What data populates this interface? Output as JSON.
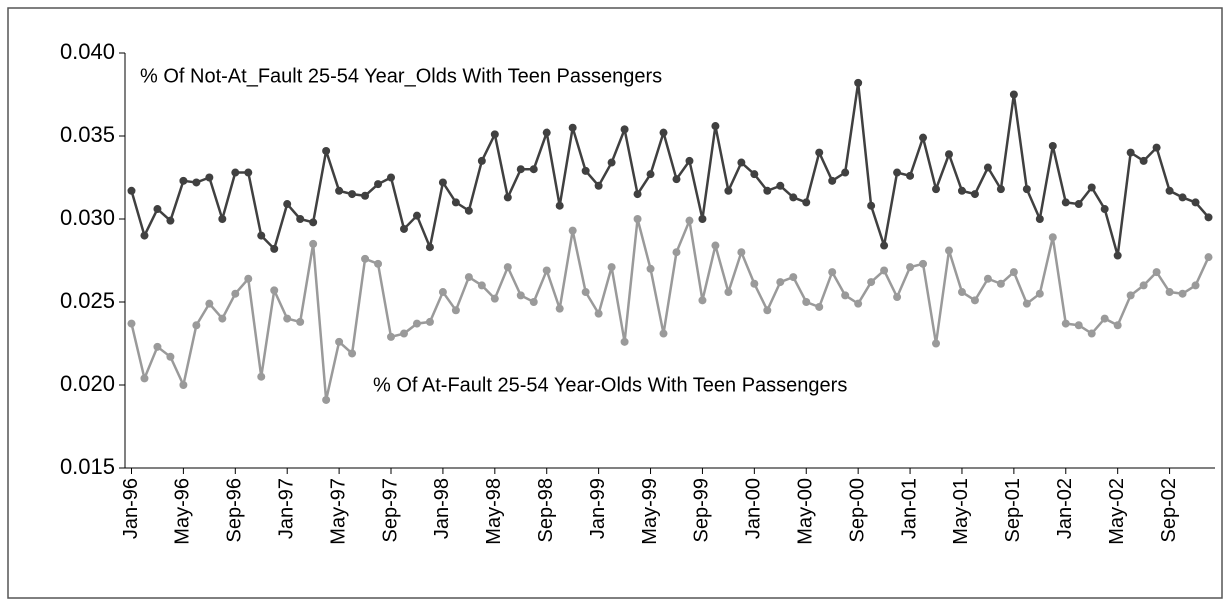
{
  "chart_data": {
    "type": "line",
    "categories": [
      "Jan-96",
      null,
      null,
      null,
      "May-96",
      null,
      null,
      null,
      "Sep-96",
      null,
      null,
      null,
      "Jan-97",
      null,
      null,
      null,
      "May-97",
      null,
      null,
      null,
      "Sep-97",
      null,
      null,
      null,
      "Jan-98",
      null,
      null,
      null,
      "May-98",
      null,
      null,
      null,
      "Sep-98",
      null,
      null,
      null,
      "Jan-99",
      null,
      null,
      null,
      "May-99",
      null,
      null,
      null,
      "Sep-99",
      null,
      null,
      null,
      "Jan-00",
      null,
      null,
      null,
      "May-00",
      null,
      null,
      null,
      "Sep-00",
      null,
      null,
      null,
      "Jan-01",
      null,
      null,
      null,
      "May-01",
      null,
      null,
      null,
      "Sep-01",
      null,
      null,
      null,
      "Jan-02",
      null,
      null,
      null,
      "May-02",
      null,
      null,
      null,
      "Sep-02",
      null,
      null,
      null
    ],
    "series": [
      {
        "name": "% Of Not-At_Fault 25-54 Year_Olds With Teen Passengers",
        "color": "#404040",
        "values": [
          0.0317,
          0.029,
          0.0306,
          0.0299,
          0.0323,
          0.0322,
          0.0325,
          0.03,
          0.0328,
          0.0328,
          0.029,
          0.0282,
          0.0309,
          0.03,
          0.0298,
          0.0341,
          0.0317,
          0.0315,
          0.0314,
          0.0321,
          0.0325,
          0.0294,
          0.0302,
          0.0283,
          0.0322,
          0.031,
          0.0305,
          0.0335,
          0.0351,
          0.0313,
          0.033,
          0.033,
          0.0352,
          0.0308,
          0.0355,
          0.0329,
          0.032,
          0.0334,
          0.0354,
          0.0315,
          0.0327,
          0.0352,
          0.0324,
          0.0335,
          0.03,
          0.0356,
          0.0317,
          0.0334,
          0.0327,
          0.0317,
          0.032,
          0.0313,
          0.031,
          0.034,
          0.0323,
          0.0328,
          0.0382,
          0.0308,
          0.0284,
          0.0328,
          0.0326,
          0.0349,
          0.0318,
          0.0339,
          0.0317,
          0.0315,
          0.0331,
          0.0318,
          0.0375,
          0.0318,
          0.03,
          0.0344,
          0.031,
          0.0309,
          0.0319,
          0.0306,
          0.0278,
          0.034,
          0.0335,
          0.0343,
          0.0317,
          0.0313,
          0.031,
          0.0301
        ]
      },
      {
        "name": "% Of At-Fault 25-54 Year-Olds With Teen Passengers",
        "color": "#9a9a9a",
        "values": [
          0.0237,
          0.0204,
          0.0223,
          0.0217,
          0.02,
          0.0236,
          0.0249,
          0.024,
          0.0255,
          0.0264,
          0.0205,
          0.0257,
          0.024,
          0.0238,
          0.0285,
          0.0191,
          0.0226,
          0.0219,
          0.0276,
          0.0273,
          0.0229,
          0.0231,
          0.0237,
          0.0238,
          0.0256,
          0.0245,
          0.0265,
          0.026,
          0.0252,
          0.0271,
          0.0254,
          0.025,
          0.0269,
          0.0246,
          0.0293,
          0.0256,
          0.0243,
          0.0271,
          0.0226,
          0.03,
          0.027,
          0.0231,
          0.028,
          0.0299,
          0.0251,
          0.0284,
          0.0256,
          0.028,
          0.0261,
          0.0245,
          0.0262,
          0.0265,
          0.025,
          0.0247,
          0.0268,
          0.0254,
          0.0249,
          0.0262,
          0.0269,
          0.0253,
          0.0271,
          0.0273,
          0.0225,
          0.0281,
          0.0256,
          0.0251,
          0.0264,
          0.0261,
          0.0268,
          0.0249,
          0.0255,
          0.0289,
          0.0237,
          0.0236,
          0.0231,
          0.024,
          0.0236,
          0.0254,
          0.026,
          0.0268,
          0.0256,
          0.0255,
          0.026,
          0.0277
        ]
      }
    ],
    "ylim": [
      0.015,
      0.04
    ],
    "yticks": [
      0.015,
      {
        "value": 0.02,
        "label": "0.020"
      },
      0.025,
      {
        "value": 0.03,
        "label": "0.030"
      },
      0.035,
      {
        "value": 0.04,
        "label": "0.040"
      }
    ],
    "grid": false
  }
}
